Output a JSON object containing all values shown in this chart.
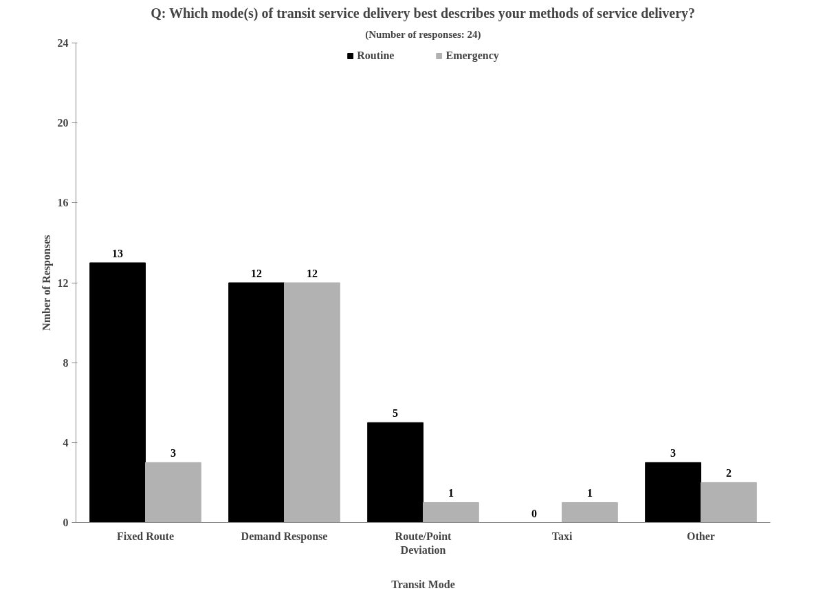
{
  "chart_data": {
    "type": "bar",
    "title": "Q: Which mode(s) of transit service delivery best describes your methods of service delivery?",
    "subtitle": "(Number of responses: 24)",
    "xlabel": "Transit Mode",
    "ylabel": "Nmber of Responses",
    "categories": [
      "Fixed Route",
      "Demand Response",
      "Route/Point Deviation",
      "Taxi",
      "Other"
    ],
    "series": [
      {
        "name": "Routine",
        "color": "#000000",
        "values": [
          13,
          12,
          5,
          0,
          3
        ]
      },
      {
        "name": "Emergency",
        "color": "#b2b2b2",
        "values": [
          3,
          12,
          1,
          1,
          2
        ]
      }
    ],
    "ylim": [
      0,
      24
    ],
    "yticks": [
      0,
      4,
      8,
      12,
      16,
      20,
      24
    ],
    "grid": false,
    "legend": "top",
    "data_labels": true
  }
}
